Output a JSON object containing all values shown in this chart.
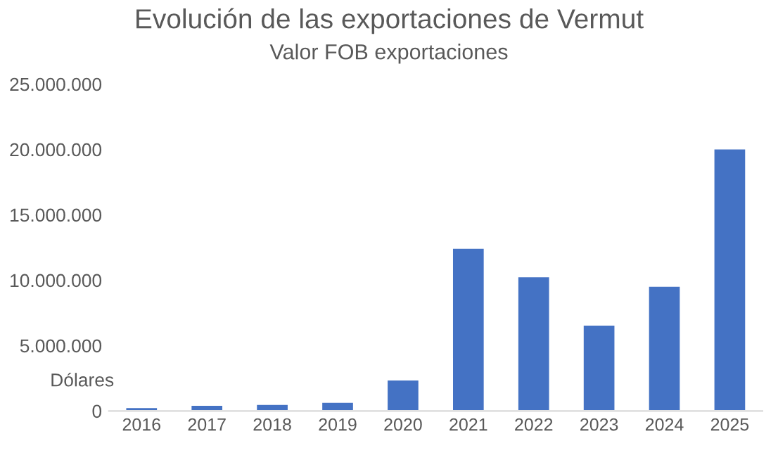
{
  "chart_data": {
    "type": "bar",
    "title": "Evolución de las exportaciones de Vermut",
    "subtitle": "Valor FOB exportaciones",
    "ylabel": "Dólares",
    "categories": [
      "2016",
      "2017",
      "2018",
      "2019",
      "2020",
      "2021",
      "2022",
      "2023",
      "2024",
      "2025"
    ],
    "values": [
      300000,
      470000,
      540000,
      700000,
      2400000,
      12480000,
      10300000,
      6600000,
      9570000,
      20080000
    ],
    "color": "#4472c4",
    "ylim": [
      0,
      25000000
    ],
    "yticks": [
      {
        "value": 0,
        "label": "0"
      },
      {
        "value": 5000000,
        "label": "5.000.000"
      },
      {
        "value": 10000000,
        "label": "10.000.000"
      },
      {
        "value": 15000000,
        "label": "15.000.000"
      },
      {
        "value": 20000000,
        "label": "20.000.000"
      },
      {
        "value": 25000000,
        "label": "25.000.000"
      }
    ],
    "grid": false,
    "legend": false
  }
}
